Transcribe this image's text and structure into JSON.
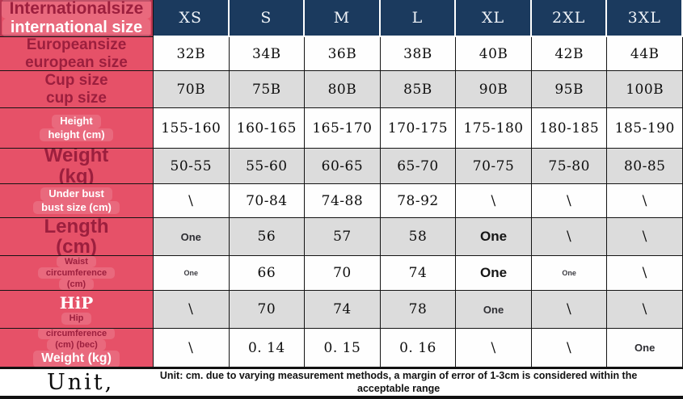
{
  "colors": {
    "label_column_pink": "#e65168",
    "header_navy": "#1b3a5e",
    "maroon_text": "#9c1f3e",
    "alt_row_gray": "#dcdcdc"
  },
  "table": {
    "header": {
      "label_lines": [
        {
          "text": "Internationalsize",
          "style": "maroon-xl",
          "boxed": true
        },
        {
          "text": "international size",
          "style": "white-xl",
          "boxed": true
        }
      ],
      "columns": [
        "XS",
        "S",
        "M",
        "L",
        "XL",
        "2XL",
        "3XL"
      ]
    },
    "rows": [
      {
        "name": "european-size",
        "bg": "white",
        "label_lines": [
          {
            "text": "Europeansize",
            "style": "maroon-lg"
          },
          {
            "text": "european size",
            "style": "maroon-lg"
          }
        ],
        "cells": [
          {
            "t": "32B"
          },
          {
            "t": "34B"
          },
          {
            "t": "36B"
          },
          {
            "t": "38B"
          },
          {
            "t": "40B"
          },
          {
            "t": "42B"
          },
          {
            "t": "44B"
          }
        ]
      },
      {
        "name": "cup-size",
        "bg": "gray",
        "label_lines": [
          {
            "text": "Cup size",
            "style": "maroon-lg"
          },
          {
            "text": "cup size",
            "style": "maroon-lg"
          }
        ],
        "cells": [
          {
            "t": "70B"
          },
          {
            "t": "75B"
          },
          {
            "t": "80B"
          },
          {
            "t": "85B"
          },
          {
            "t": "90B"
          },
          {
            "t": "95B"
          },
          {
            "t": "100B"
          }
        ]
      },
      {
        "name": "height",
        "bg": "white",
        "label_lines": [
          {
            "text": "Height",
            "style": "white-sm",
            "boxed": true
          },
          {
            "text": "height (cm)",
            "style": "white-sm",
            "boxed": true
          }
        ],
        "cells": [
          {
            "t": "155-160"
          },
          {
            "t": "160-165"
          },
          {
            "t": "165-170"
          },
          {
            "t": "170-175"
          },
          {
            "t": "175-180"
          },
          {
            "t": "180-185"
          },
          {
            "t": "185-190"
          }
        ]
      },
      {
        "name": "weight",
        "bg": "gray",
        "label_lines": [
          {
            "text": "Weight",
            "style": "maroon-xxl"
          },
          {
            "text": "(kg)",
            "style": "maroon-xxl"
          }
        ],
        "cells": [
          {
            "t": "50-55"
          },
          {
            "t": "55-60"
          },
          {
            "t": "60-65"
          },
          {
            "t": "65-70"
          },
          {
            "t": "70-75"
          },
          {
            "t": "75-80"
          },
          {
            "t": "80-85"
          }
        ]
      },
      {
        "name": "under-bust",
        "bg": "white",
        "label_lines": [
          {
            "text": "Under bust",
            "style": "white-sm",
            "boxed": true
          },
          {
            "text": "bust size (cm)",
            "style": "white-sm",
            "boxed": true
          }
        ],
        "cells": [
          {
            "t": "\\"
          },
          {
            "t": "70-84"
          },
          {
            "t": "74-88"
          },
          {
            "t": "78-92"
          },
          {
            "t": "\\"
          },
          {
            "t": "\\"
          },
          {
            "t": "\\"
          }
        ]
      },
      {
        "name": "length",
        "bg": "gray",
        "label_lines": [
          {
            "text": "Length",
            "style": "maroon-xxl"
          },
          {
            "text": "(cm)",
            "style": "maroon-xxl"
          }
        ],
        "cells": [
          {
            "t": "One",
            "s": "one-md"
          },
          {
            "t": "56"
          },
          {
            "t": "57"
          },
          {
            "t": "58"
          },
          {
            "t": "One",
            "s": "one-lg"
          },
          {
            "t": "\\"
          },
          {
            "t": "\\"
          }
        ]
      },
      {
        "name": "waist-circumference",
        "bg": "white",
        "label_lines": [
          {
            "text": "Waist",
            "style": "maroon-sm",
            "boxed": true
          },
          {
            "text": "circumference",
            "style": "maroon-sm",
            "boxed": true
          },
          {
            "text": "(cm)",
            "style": "maroon-sm",
            "boxed": true
          }
        ],
        "cells": [
          {
            "t": "One",
            "s": "one-sm"
          },
          {
            "t": "66"
          },
          {
            "t": "70"
          },
          {
            "t": "74"
          },
          {
            "t": "One",
            "s": "one-lg"
          },
          {
            "t": "One",
            "s": "one-sm"
          },
          {
            "t": "\\"
          }
        ]
      },
      {
        "name": "hip",
        "bg": "gray",
        "label_lines": [
          {
            "text": "HiP",
            "style": "white-serif"
          },
          {
            "text": "Hip",
            "style": "maroon-sm",
            "boxed": true
          }
        ],
        "cells": [
          {
            "t": "\\"
          },
          {
            "t": "70"
          },
          {
            "t": "74"
          },
          {
            "t": "78"
          },
          {
            "t": "One",
            "s": "one-md"
          },
          {
            "t": "\\"
          },
          {
            "t": "\\"
          }
        ]
      },
      {
        "name": "weight-kg",
        "bg": "white",
        "label_lines": [
          {
            "text": "circumference",
            "style": "maroon-sm",
            "boxed": true
          },
          {
            "text": "(cm) (bec)",
            "style": "maroon-sm",
            "boxed": true
          },
          {
            "text": "Weight (kg)",
            "style": "white-md",
            "boxed": true
          }
        ],
        "cells": [
          {
            "t": "\\"
          },
          {
            "t": "0. 14"
          },
          {
            "t": "0. 15"
          },
          {
            "t": "0. 16"
          },
          {
            "t": "\\"
          },
          {
            "t": "\\"
          },
          {
            "t": "One",
            "s": "one-md"
          }
        ]
      }
    ]
  },
  "footer": {
    "unit_label": "Unit,",
    "note": "Unit: cm. due to varying measurement methods, a margin of error of 1-3cm is considered within the acceptable range"
  }
}
